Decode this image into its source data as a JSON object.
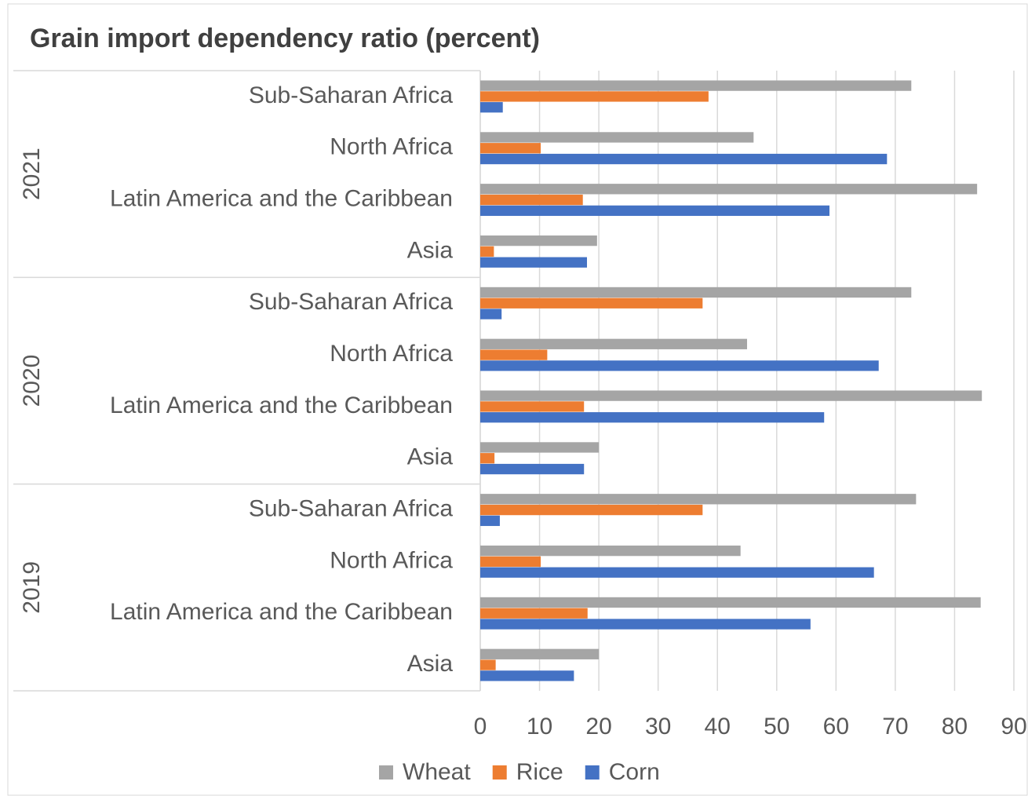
{
  "chart_data": {
    "type": "bar",
    "orientation": "horizontal",
    "title": "Grain import dependency ratio (percent)",
    "category_groups": [
      {
        "name": "2021",
        "categories": [
          "Sub-Saharan Africa",
          "North Africa",
          "Latin America and the Caribbean",
          "Asia"
        ]
      },
      {
        "name": "2020",
        "categories": [
          "Sub-Saharan Africa",
          "North Africa",
          "Latin America and the Caribbean",
          "Asia"
        ]
      },
      {
        "name": "2019",
        "categories": [
          "Sub-Saharan Africa",
          "North Africa",
          "Latin America and the Caribbean",
          "Asia"
        ]
      }
    ],
    "series": [
      {
        "name": "Wheat",
        "color": "#a5a5a5",
        "values": [
          72.7,
          46.1,
          83.8,
          19.7,
          72.7,
          45.0,
          84.6,
          20.0,
          73.5,
          43.9,
          84.4,
          20.0
        ]
      },
      {
        "name": "Rice",
        "color": "#ed7d31",
        "values": [
          38.5,
          10.2,
          17.3,
          2.3,
          37.5,
          11.3,
          17.5,
          2.4,
          37.5,
          10.2,
          18.1,
          2.6
        ]
      },
      {
        "name": "Corn",
        "color": "#4472c4",
        "values": [
          3.8,
          68.6,
          58.9,
          18.0,
          3.6,
          67.2,
          58.0,
          17.5,
          3.3,
          66.4,
          55.7,
          15.8
        ]
      }
    ],
    "xlim": [
      0,
      90
    ],
    "xticks": [
      0,
      10,
      20,
      30,
      40,
      50,
      60,
      70,
      80,
      90
    ],
    "grid": true,
    "legend": "bottom"
  }
}
